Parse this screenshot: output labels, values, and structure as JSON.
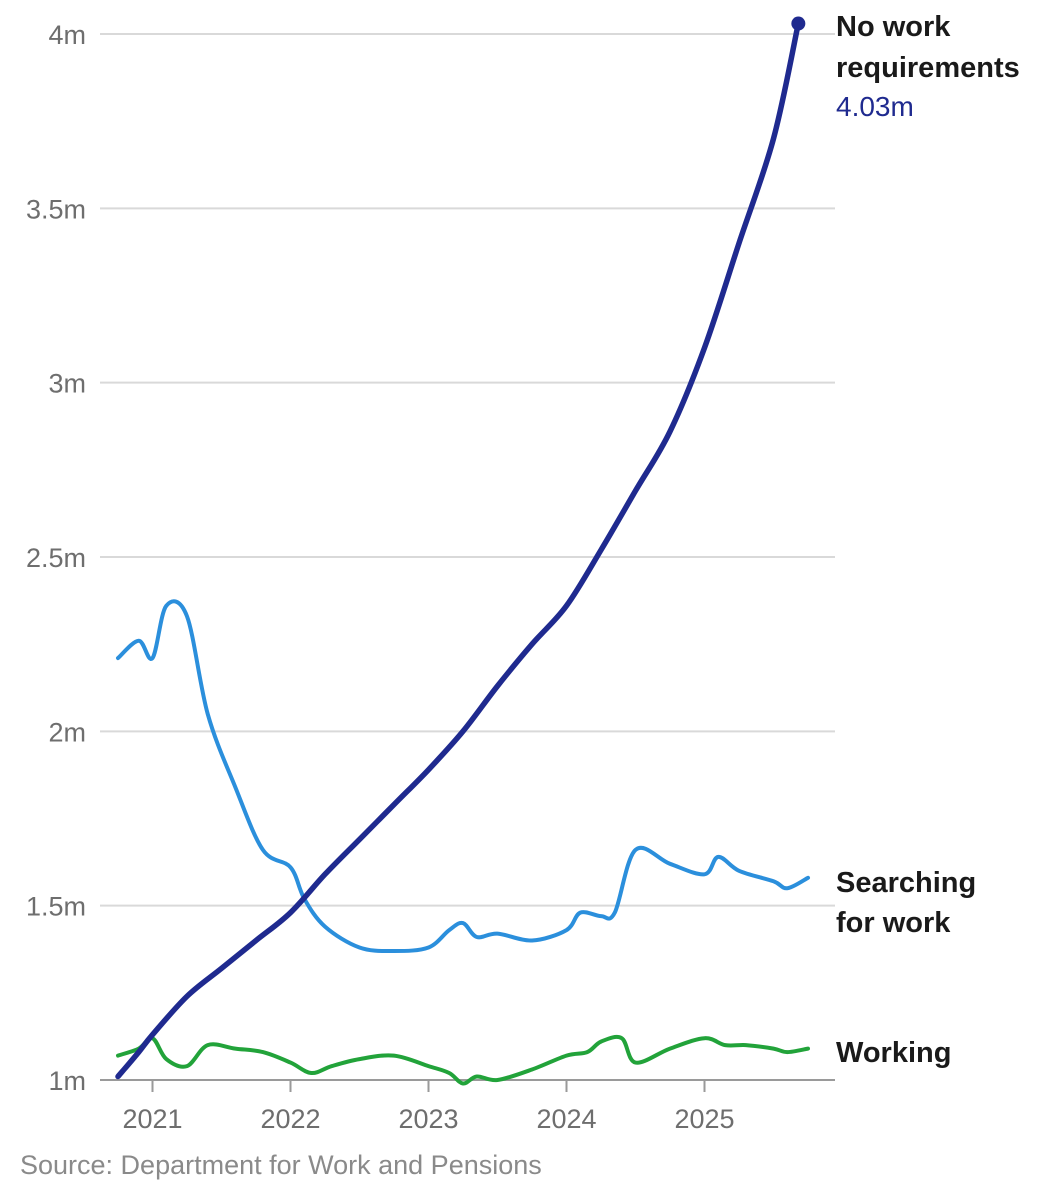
{
  "chart_data": {
    "type": "line",
    "title": "",
    "xlabel": "",
    "ylabel": "",
    "xlim": [
      2020.75,
      2025.75
    ],
    "ylim": [
      1000000,
      4000000
    ],
    "y_ticks": [
      {
        "value": 1000000,
        "label": "1m"
      },
      {
        "value": 1500000,
        "label": "1.5m"
      },
      {
        "value": 2000000,
        "label": "2m"
      },
      {
        "value": 2500000,
        "label": "2.5m"
      },
      {
        "value": 3000000,
        "label": "3m"
      },
      {
        "value": 3500000,
        "label": "3.5m"
      },
      {
        "value": 4000000,
        "label": "4m"
      }
    ],
    "x_ticks": [
      {
        "value": 2021.0,
        "label": "2021"
      },
      {
        "value": 2022.0,
        "label": "2022"
      },
      {
        "value": 2023.0,
        "label": "2023"
      },
      {
        "value": 2024.0,
        "label": "2024"
      },
      {
        "value": 2025.0,
        "label": "2025"
      }
    ],
    "grid": true,
    "series": [
      {
        "name": "No work requirements",
        "label_lines": [
          "No work",
          "requirements"
        ],
        "end_value_label": "4.03m",
        "color": "#1f2a8f",
        "x": [
          2020.75,
          2020.9,
          2021.0,
          2021.25,
          2021.5,
          2021.75,
          2022.0,
          2022.25,
          2022.5,
          2022.75,
          2023.0,
          2023.25,
          2023.5,
          2023.75,
          2024.0,
          2024.25,
          2024.5,
          2024.75,
          2025.0,
          2025.25,
          2025.5,
          2025.68
        ],
        "y": [
          1010000,
          1080000,
          1130000,
          1240000,
          1320000,
          1400000,
          1480000,
          1590000,
          1690000,
          1790000,
          1890000,
          2000000,
          2130000,
          2250000,
          2360000,
          2520000,
          2690000,
          2860000,
          3100000,
          3400000,
          3700000,
          4030000
        ]
      },
      {
        "name": "Searching for work",
        "label_lines": [
          "Searching",
          "for work"
        ],
        "color": "#2b8fdc",
        "x": [
          2020.75,
          2020.9,
          2021.0,
          2021.1,
          2021.25,
          2021.4,
          2021.6,
          2021.8,
          2022.0,
          2022.1,
          2022.25,
          2022.5,
          2022.75,
          2023.0,
          2023.15,
          2023.25,
          2023.35,
          2023.5,
          2023.75,
          2024.0,
          2024.1,
          2024.25,
          2024.35,
          2024.5,
          2024.75,
          2025.0,
          2025.1,
          2025.25,
          2025.5,
          2025.6,
          2025.75
        ],
        "y": [
          2210000,
          2260000,
          2210000,
          2360000,
          2330000,
          2050000,
          1840000,
          1660000,
          1610000,
          1520000,
          1440000,
          1380000,
          1370000,
          1380000,
          1430000,
          1450000,
          1410000,
          1420000,
          1400000,
          1430000,
          1480000,
          1470000,
          1480000,
          1660000,
          1620000,
          1590000,
          1640000,
          1600000,
          1570000,
          1550000,
          1580000
        ]
      },
      {
        "name": "Working",
        "label_lines": [
          "Working"
        ],
        "color": "#22a33a",
        "x": [
          2020.75,
          2020.9,
          2021.0,
          2021.1,
          2021.25,
          2021.4,
          2021.6,
          2021.8,
          2022.0,
          2022.15,
          2022.3,
          2022.5,
          2022.75,
          2023.0,
          2023.15,
          2023.25,
          2023.35,
          2023.5,
          2023.75,
          2024.0,
          2024.15,
          2024.25,
          2024.4,
          2024.5,
          2024.75,
          2025.0,
          2025.15,
          2025.3,
          2025.5,
          2025.6,
          2025.75
        ],
        "y": [
          1070000,
          1090000,
          1120000,
          1060000,
          1040000,
          1100000,
          1090000,
          1080000,
          1050000,
          1020000,
          1040000,
          1060000,
          1070000,
          1040000,
          1020000,
          990000,
          1010000,
          1000000,
          1030000,
          1070000,
          1080000,
          1110000,
          1120000,
          1050000,
          1090000,
          1120000,
          1100000,
          1100000,
          1090000,
          1080000,
          1090000
        ]
      }
    ]
  },
  "source": "Source: Department for Work and Pensions"
}
